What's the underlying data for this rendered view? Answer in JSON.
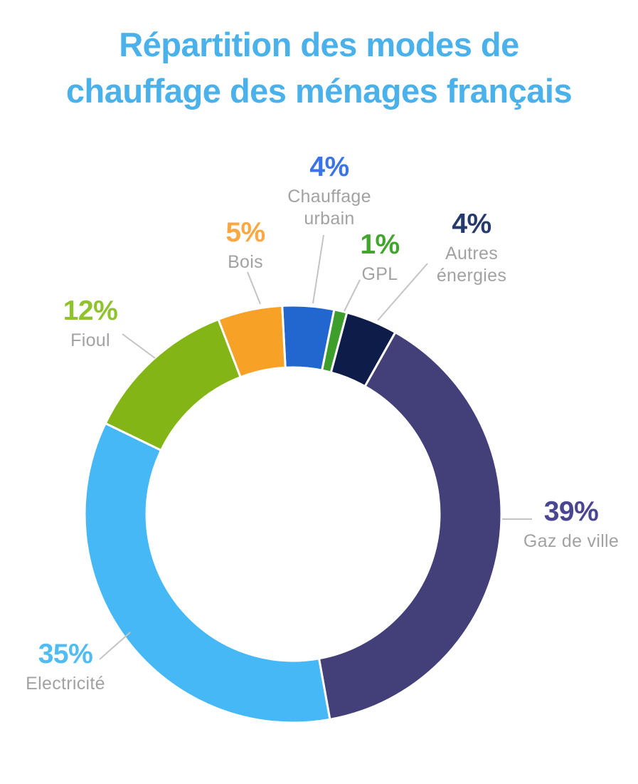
{
  "title": {
    "lines": [
      "Répartition des modes de",
      "chauffage des ménages français"
    ],
    "color": "#4ab1eb"
  },
  "chart_data": {
    "type": "pie",
    "subtype": "donut",
    "title": "Répartition des modes de chauffage des ménages français",
    "unit": "%",
    "start_angle_deg": -3,
    "inner_radius_ratio": 0.703,
    "gap_stroke_color": "#ffffff",
    "label_text_color": "#a2a2a2",
    "leader_line_color": "#c4c4c4",
    "slices": [
      {
        "label": "Chauffage urbain",
        "value": 4,
        "pct": "4%",
        "color": "#2266d0",
        "pct_color": "#3b74e8"
      },
      {
        "label": "GPL",
        "value": 1,
        "pct": "1%",
        "color": "#3d9e2c",
        "pct_color": "#41a52e"
      },
      {
        "label": "Autres énergies",
        "value": 4,
        "pct": "4%",
        "color": "#0e1c4a",
        "pct_color": "#263a6d"
      },
      {
        "label": "Gaz de ville",
        "value": 39,
        "pct": "39%",
        "color": "#433f78",
        "pct_color": "#4b4691"
      },
      {
        "label": "Electricité",
        "value": 35,
        "pct": "35%",
        "color": "#45b8f5",
        "pct_color": "#4fbcf2"
      },
      {
        "label": "Fioul",
        "value": 12,
        "pct": "12%",
        "color": "#84b517",
        "pct_color": "#8ec32e"
      },
      {
        "label": "Bois",
        "value": 5,
        "pct": "5%",
        "color": "#f7a226",
        "pct_color": "#fba843"
      }
    ]
  }
}
